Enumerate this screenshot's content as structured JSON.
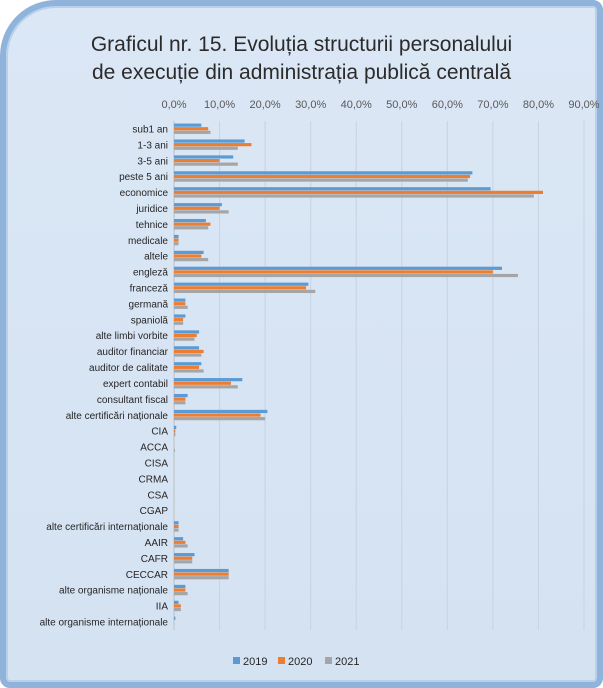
{
  "chart_data": {
    "type": "bar",
    "orientation": "horizontal",
    "title": "Graficul nr. 15. Evoluția structurii personalului de execuție din administrația publică centrală",
    "title_lines": [
      "Graficul nr. 15. Evoluția structurii personalului",
      "de execuție din administrația publică centrală"
    ],
    "xlim": [
      0,
      90
    ],
    "x_ticks": [
      "0,0%",
      "10,0%",
      "20,0%",
      "30,0%",
      "40,0%",
      "50,0%",
      "60,0%",
      "70,0%",
      "80,0%",
      "90,0%"
    ],
    "x_axis_position": "top",
    "grid": true,
    "legend_position": "bottom",
    "categories": [
      "sub1 an",
      "1-3 ani",
      "3-5 ani",
      "peste 5 ani",
      "economice",
      "juridice",
      "tehnice",
      "medicale",
      "altele",
      "engleză",
      "franceză",
      "germană",
      "spaniolă",
      "alte limbi vorbite",
      "auditor financiar",
      "auditor de calitate",
      "expert contabil",
      "consultant fiscal",
      "alte certificări naționale",
      "CIA",
      "ACCA",
      "CISA",
      "CRMA",
      "CSA",
      "CGAP",
      "alte certificări internaționale",
      "AAIR",
      "CAFR",
      "CECCAR",
      "alte organisme naționale",
      "IIA",
      "alte organisme internaționale"
    ],
    "series": [
      {
        "name": "2019",
        "color": "#5b9bd5",
        "values": [
          6.0,
          15.5,
          13.0,
          65.5,
          69.5,
          10.5,
          7.0,
          1.0,
          6.5,
          72.0,
          29.5,
          2.5,
          2.5,
          5.5,
          5.5,
          6.0,
          15.0,
          3.0,
          20.5,
          0.5,
          0.0,
          0.0,
          0.0,
          0.0,
          0.0,
          1.0,
          2.0,
          4.5,
          12.0,
          2.5,
          1.0,
          0.3
        ]
      },
      {
        "name": "2020",
        "color": "#ed7d31",
        "values": [
          7.5,
          17.0,
          10.0,
          65.0,
          81.0,
          10.0,
          8.0,
          1.0,
          6.0,
          70.0,
          29.0,
          2.5,
          2.0,
          5.0,
          6.5,
          5.5,
          12.5,
          2.5,
          19.0,
          0.3,
          0.0,
          0.0,
          0.0,
          0.0,
          0.0,
          1.0,
          2.5,
          4.0,
          12.0,
          2.5,
          1.5,
          0.0
        ]
      },
      {
        "name": "2021",
        "color": "#a5a5a5",
        "values": [
          8.0,
          14.0,
          14.0,
          64.5,
          79.0,
          12.0,
          7.5,
          1.0,
          7.5,
          75.5,
          31.0,
          3.0,
          2.0,
          4.5,
          6.0,
          6.5,
          14.0,
          2.5,
          20.0,
          0.3,
          0.2,
          0.0,
          0.0,
          0.0,
          0.0,
          1.0,
          3.0,
          4.0,
          12.0,
          3.0,
          1.5,
          0.0
        ]
      }
    ]
  }
}
